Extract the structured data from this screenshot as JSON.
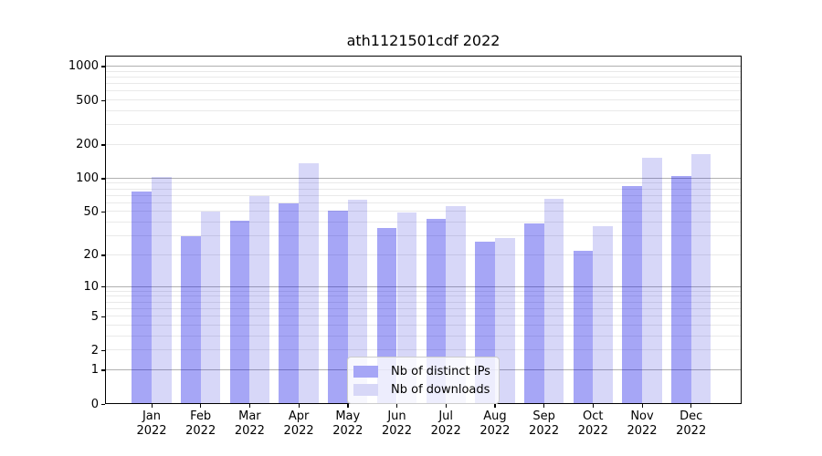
{
  "chart": {
    "title": "ath1121501cdf 2022"
  },
  "chart_data": {
    "type": "bar",
    "title": "ath1121501cdf 2022",
    "categories": [
      "Jan 2022",
      "Feb 2022",
      "Mar 2022",
      "Apr 2022",
      "May 2022",
      "Jun 2022",
      "Jul 2022",
      "Aug 2022",
      "Sep 2022",
      "Oct 2022",
      "Nov 2022",
      "Dec 2022"
    ],
    "x_tick_months": [
      "Jan",
      "Feb",
      "Mar",
      "Apr",
      "May",
      "Jun",
      "Jul",
      "Aug",
      "Sep",
      "Oct",
      "Nov",
      "Dec"
    ],
    "x_tick_year": "2022",
    "series": [
      {
        "name": "Nb of distinct IPs",
        "color": "#a6a6f6",
        "css_color": "rgba(0,0,229,0.35)",
        "values": [
          77,
          30,
          42,
          60,
          51,
          36,
          43,
          27,
          39,
          22,
          85,
          106
        ]
      },
      {
        "name": "Nb of downloads",
        "color": "#d7d7f7",
        "css_color": "rgba(10,10,215,0.165)",
        "values": [
          104,
          50,
          69,
          137,
          65,
          49,
          56,
          29,
          66,
          37,
          154,
          167
        ]
      }
    ],
    "scale": "log1p",
    "y_ticks": [
      0,
      1,
      2,
      5,
      10,
      20,
      50,
      100,
      200,
      500,
      1000
    ],
    "y_major_gridlines": [
      1,
      10,
      100,
      1000
    ],
    "ylim": [
      0,
      1070
    ],
    "grid": "horizontal major+minor",
    "legend_position": "lower center inside plot",
    "xlabel": "",
    "ylabel": ""
  },
  "legend": {
    "items": [
      {
        "label": "Nb of distinct IPs"
      },
      {
        "label": "Nb of downloads"
      }
    ]
  },
  "colors": {
    "bar_distinct_ips": "#a6a6f6",
    "bar_downloads": "#d7d7f7",
    "grid_major": "#b0b0b0",
    "grid_minor": "#e9e9e9",
    "axis": "#000000",
    "legend_border": "#cccccc"
  }
}
